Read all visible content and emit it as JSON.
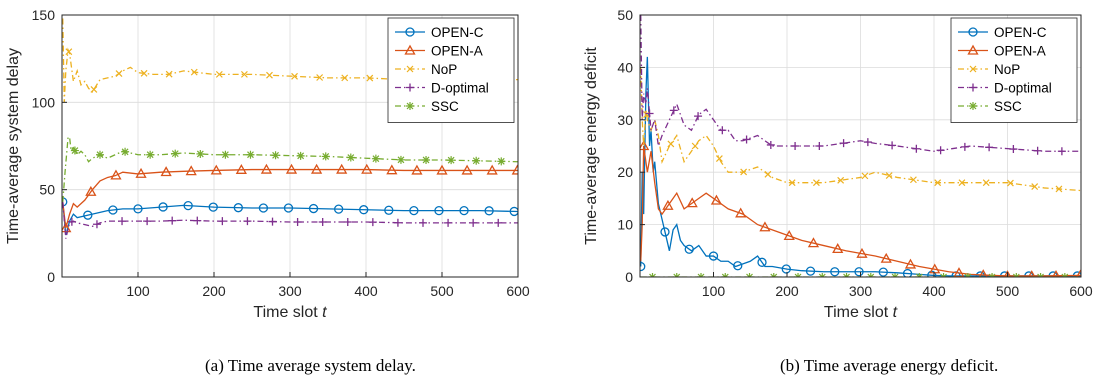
{
  "chart_data": [
    {
      "type": "line",
      "caption": "(a) Time average system delay.",
      "xlabel": "Time slot",
      "xlabel_var": "t",
      "ylabel": "Time-average system delay",
      "xlim": [
        0,
        600
      ],
      "ylim": [
        0,
        150
      ],
      "xticks": [
        100,
        200,
        300,
        400,
        500,
        600
      ],
      "yticks": [
        0,
        50,
        100,
        150
      ],
      "grid": true,
      "legend_position": "top-right",
      "series": [
        {
          "name": "OPEN-C",
          "color": "#0072BD",
          "marker": "circle",
          "dash": "solid",
          "x": [
            1,
            5,
            10,
            15,
            20,
            30,
            40,
            50,
            60,
            80,
            100,
            130,
            160,
            200,
            250,
            300,
            350,
            400,
            450,
            500,
            550,
            600
          ],
          "y": [
            43,
            24,
            32,
            36,
            34,
            35,
            36,
            37,
            38,
            39,
            39,
            40,
            41,
            40,
            39.5,
            39.5,
            39,
            38.5,
            38,
            38,
            38,
            37.5
          ]
        },
        {
          "name": "OPEN-A",
          "color": "#D95319",
          "marker": "triangle",
          "dash": "solid",
          "x": [
            1,
            5,
            10,
            15,
            20,
            30,
            40,
            50,
            60,
            70,
            80,
            100,
            130,
            160,
            200,
            250,
            300,
            350,
            400,
            450,
            500,
            550,
            600
          ],
          "y": [
            43,
            28,
            36,
            42,
            40,
            44,
            50,
            55,
            57,
            58,
            60,
            59,
            60,
            60.5,
            61,
            61.5,
            61.5,
            61.5,
            61.5,
            61,
            61,
            61,
            61
          ]
        },
        {
          "name": "NoP",
          "color": "#EDB120",
          "marker": "x",
          "dash": "dashdot",
          "x": [
            1,
            3,
            5,
            8,
            10,
            15,
            20,
            25,
            30,
            35,
            40,
            50,
            60,
            70,
            80,
            90,
            100,
            120,
            140,
            160,
            180,
            200,
            250,
            300,
            350,
            400,
            450,
            500,
            550,
            600
          ],
          "y": [
            148,
            100,
            118,
            130,
            128,
            112,
            118,
            110,
            112,
            108,
            106,
            113,
            114,
            115,
            118,
            120,
            117,
            116,
            116,
            118,
            117,
            116,
            116,
            115,
            114,
            114,
            113,
            113,
            113,
            113
          ]
        },
        {
          "name": "D-optimal",
          "color": "#7E2F8E",
          "marker": "plus",
          "dash": "dashdot",
          "x": [
            1,
            5,
            10,
            15,
            20,
            30,
            40,
            50,
            60,
            80,
            100,
            130,
            160,
            200,
            250,
            300,
            350,
            400,
            450,
            500,
            550,
            600
          ],
          "y": [
            43,
            22,
            31,
            32,
            31,
            30,
            29,
            31,
            32,
            32,
            32,
            32,
            32.5,
            32,
            32,
            31.5,
            31.5,
            31.5,
            31,
            31,
            31,
            31
          ]
        },
        {
          "name": "SSC",
          "color": "#77AC30",
          "marker": "star",
          "dash": "dashdot",
          "x": [
            1,
            4,
            8,
            10,
            12,
            15,
            20,
            25,
            30,
            35,
            40,
            50,
            60,
            70,
            80,
            100,
            130,
            160,
            200,
            250,
            300,
            350,
            400,
            450,
            500,
            550,
            600
          ],
          "y": [
            43,
            60,
            80,
            80,
            72,
            74,
            70,
            72,
            70,
            66,
            68,
            70,
            68,
            70,
            72,
            70,
            70,
            71,
            70,
            70,
            69.5,
            69,
            68,
            67,
            67,
            66.5,
            66
          ]
        }
      ]
    },
    {
      "type": "line",
      "caption": "(b) Time average energy deficit.",
      "xlabel": "Time slot",
      "xlabel_var": "t",
      "ylabel": "Time-average energy deficit",
      "xlim": [
        0,
        600
      ],
      "ylim": [
        0,
        50
      ],
      "xticks": [
        100,
        200,
        300,
        400,
        500,
        600
      ],
      "yticks": [
        0,
        10,
        20,
        30,
        40,
        50
      ],
      "grid": true,
      "legend_position": "top-right",
      "series": [
        {
          "name": "OPEN-C",
          "color": "#0072BD",
          "marker": "circle",
          "dash": "solid",
          "x": [
            1,
            3,
            5,
            8,
            10,
            13,
            15,
            18,
            20,
            25,
            30,
            35,
            40,
            45,
            50,
            55,
            60,
            70,
            80,
            90,
            100,
            110,
            120,
            130,
            140,
            150,
            160,
            170,
            180,
            200,
            220,
            250,
            280,
            300,
            320,
            350,
            380,
            400,
            420,
            450,
            500,
            550,
            600
          ],
          "y": [
            2,
            20,
            12,
            35,
            42,
            25,
            28,
            20,
            22,
            14,
            11,
            8,
            5,
            9,
            10,
            7,
            6,
            5,
            6,
            4,
            4,
            3,
            3,
            2,
            2.5,
            3,
            4,
            2,
            2,
            1.5,
            1.2,
            1,
            1,
            1,
            1,
            0.8,
            0.5,
            0.3,
            0.2,
            0.2,
            0.2,
            0.2,
            0.2
          ]
        },
        {
          "name": "OPEN-A",
          "color": "#D95319",
          "marker": "triangle",
          "dash": "solid",
          "x": [
            1,
            3,
            5,
            8,
            10,
            15,
            20,
            25,
            30,
            40,
            50,
            60,
            70,
            80,
            90,
            100,
            120,
            140,
            160,
            180,
            200,
            220,
            250,
            280,
            300,
            320,
            350,
            380,
            400,
            420,
            450,
            480,
            500,
            550,
            600
          ],
          "y": [
            3,
            10,
            25,
            22,
            20,
            24,
            18,
            13,
            12,
            14,
            16,
            13,
            14,
            15,
            16,
            15,
            13,
            12,
            10,
            9,
            8,
            7,
            6,
            5,
            4.5,
            4,
            3,
            2,
            1.5,
            1,
            0.5,
            0.3,
            0.2,
            0.2,
            0.3
          ]
        },
        {
          "name": "NoP",
          "color": "#EDB120",
          "marker": "x",
          "dash": "dashdot",
          "x": [
            1,
            3,
            5,
            8,
            10,
            15,
            20,
            25,
            30,
            40,
            50,
            60,
            70,
            80,
            90,
            100,
            110,
            120,
            140,
            160,
            180,
            200,
            250,
            300,
            320,
            350,
            400,
            450,
            500,
            550,
            600
          ],
          "y": [
            40,
            30,
            25,
            32,
            30,
            28,
            30,
            27,
            22,
            25,
            27,
            22,
            24,
            26,
            27,
            25,
            22,
            20,
            20,
            21,
            19,
            18,
            18,
            19,
            20,
            19,
            18,
            18,
            18,
            17,
            16.5
          ]
        },
        {
          "name": "D-optimal",
          "color": "#7E2F8E",
          "marker": "plus",
          "dash": "dashdot",
          "x": [
            1,
            3,
            5,
            8,
            10,
            15,
            20,
            25,
            30,
            40,
            50,
            60,
            70,
            80,
            90,
            100,
            110,
            120,
            130,
            140,
            160,
            180,
            200,
            250,
            300,
            320,
            350,
            400,
            450,
            500,
            550,
            600
          ],
          "y": [
            50,
            30,
            35,
            33,
            36,
            28,
            30,
            25,
            27,
            30,
            33,
            29,
            28,
            31,
            32,
            30,
            28,
            28,
            26,
            26,
            27,
            25,
            25,
            25,
            26,
            25.5,
            25,
            24,
            25,
            24.5,
            24,
            24
          ]
        },
        {
          "name": "SSC",
          "color": "#77AC30",
          "marker": "star",
          "dash": "dashdot",
          "x": [
            1,
            5,
            10,
            20,
            50,
            100,
            200,
            300,
            400,
            500,
            600
          ],
          "y": [
            0,
            0,
            0,
            0,
            0,
            0,
            0,
            0,
            0,
            0,
            0
          ]
        }
      ]
    }
  ]
}
